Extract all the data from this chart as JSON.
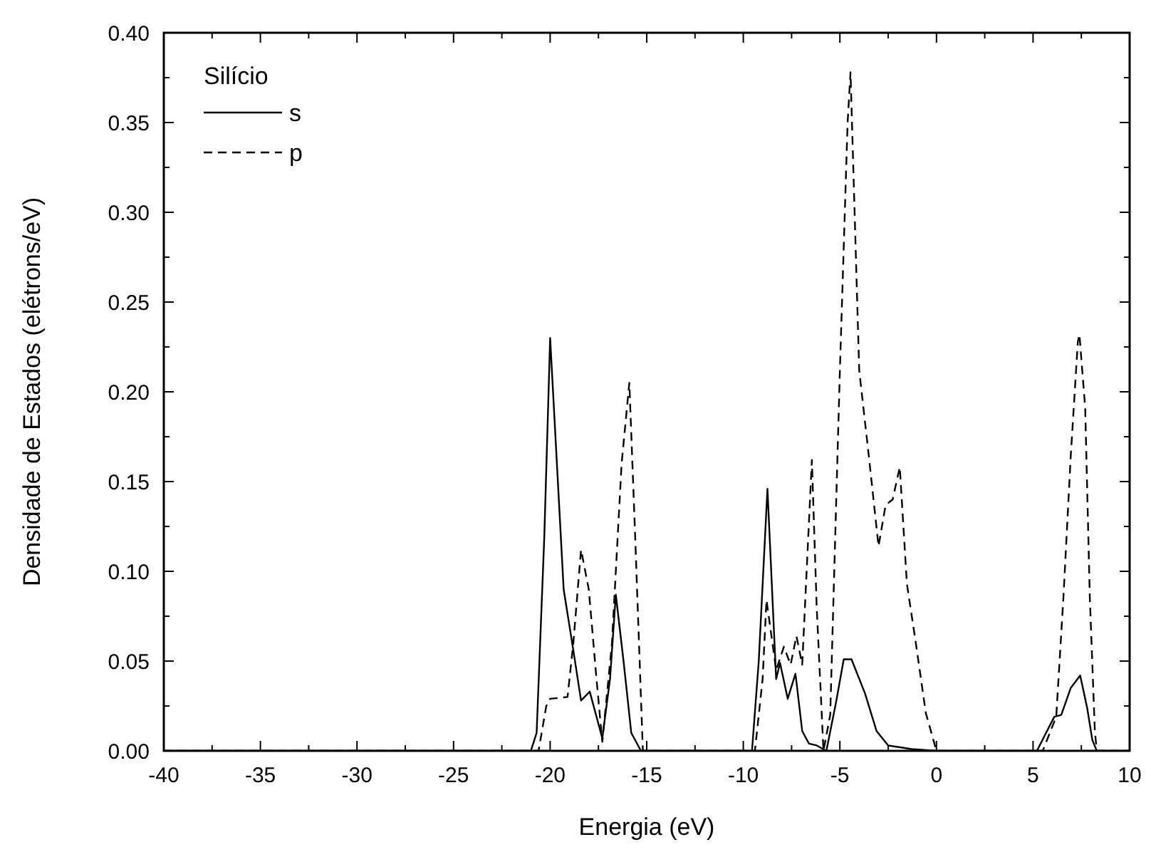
{
  "chart_data": {
    "type": "line",
    "xlabel": "Energia (eV)",
    "ylabel": "Densidade de Estados (elétrons/eV)",
    "legend_title": "Silício",
    "legend": "top left",
    "grid": false,
    "xlim": [
      -40,
      10
    ],
    "ylim": [
      0,
      0.4
    ],
    "xticks": [
      -40,
      {
        "value": -37.5,
        "label": null
      },
      -35,
      {
        "value": -32.5,
        "label": null
      },
      -30,
      {
        "value": -27.5,
        "label": null
      },
      -25,
      {
        "value": -22.5,
        "label": null
      },
      -20,
      {
        "value": -17.5,
        "label": null
      },
      -15,
      {
        "value": -12.5,
        "label": null
      },
      -10,
      {
        "value": -7.5,
        "label": null
      },
      -5,
      {
        "value": -2.5,
        "label": null
      },
      0,
      {
        "value": 2.5,
        "label": null
      },
      5,
      {
        "value": 7.5,
        "label": null
      },
      10
    ],
    "yticks": [
      {
        "value": 0,
        "label": "0.00"
      },
      {
        "value": 0.025,
        "label": null
      },
      {
        "value": 0.05,
        "label": "0.05"
      },
      {
        "value": 0.075,
        "label": null
      },
      {
        "value": 0.1,
        "label": "0.10"
      },
      {
        "value": 0.125,
        "label": null
      },
      {
        "value": 0.15,
        "label": "0.15"
      },
      {
        "value": 0.175,
        "label": null
      },
      {
        "value": 0.2,
        "label": "0.20"
      },
      {
        "value": 0.225,
        "label": null
      },
      {
        "value": 0.25,
        "label": "0.25"
      },
      {
        "value": 0.275,
        "label": null
      },
      {
        "value": 0.3,
        "label": "0.30"
      },
      {
        "value": 0.325,
        "label": null
      },
      {
        "value": 0.35,
        "label": "0.35"
      },
      {
        "value": 0.375,
        "label": null
      },
      {
        "value": 0.4,
        "label": "0.40"
      }
    ],
    "series": [
      {
        "name": "s",
        "color": "#000000",
        "line_style": "solid",
        "x": [
          -40,
          -21,
          -20.7,
          -20.3,
          -20,
          -19.7,
          -19.3,
          -18.8,
          -18.4,
          -17.95,
          -17.3,
          -16.9,
          -16.6,
          -16.2,
          -15.8,
          -15.3,
          -10,
          -9.55,
          -9.2,
          -8.75,
          -8.3,
          -8.1,
          -7.7,
          -7.3,
          -6.95,
          -6.6,
          -6.2,
          -5.7,
          -5.2,
          -4.8,
          -4.4,
          -3.7,
          -3.1,
          -2.5,
          -1.3,
          0,
          5.2,
          6.1,
          6.46,
          6.95,
          7.44,
          7.8,
          8.07,
          8.3,
          10
        ],
        "values": [
          0,
          0,
          0.01,
          0.12,
          0.23,
          0.17,
          0.09,
          0.056,
          0.028,
          0.033,
          0.007,
          0.04,
          0.087,
          0.05,
          0.01,
          0,
          0,
          0,
          0.05,
          0.146,
          0.04,
          0.049,
          0.029,
          0.043,
          0.011,
          0.004,
          0.003,
          0,
          0.027,
          0.051,
          0.051,
          0.032,
          0.011,
          0.003,
          0.001,
          0,
          0,
          0.019,
          0.02,
          0.035,
          0.042,
          0.024,
          0.006,
          0,
          0
        ]
      },
      {
        "name": "p",
        "color": "#000000",
        "line_style": "dashed",
        "x": [
          -40,
          -20.6,
          -20.2,
          -20,
          -19.1,
          -18.8,
          -18.4,
          -18.0,
          -17.6,
          -17.3,
          -16.8,
          -16.3,
          -15.9,
          -15.6,
          -15.2,
          -9.4,
          -9.0,
          -8.8,
          -8.3,
          -7.9,
          -7.55,
          -7.25,
          -6.95,
          -6.45,
          -6.2,
          -5.85,
          -5.5,
          -5.0,
          -4.6,
          -4.45,
          -4.0,
          -3.5,
          -3.0,
          -2.63,
          -2.27,
          -1.9,
          -1.53,
          -1.04,
          -0.55,
          0,
          5.5,
          6.2,
          6.57,
          6.95,
          7.32,
          7.4,
          7.7,
          7.94,
          8.2,
          8.3,
          10
        ],
        "values": [
          0,
          0,
          0.025,
          0.029,
          0.03,
          0.06,
          0.112,
          0.09,
          0.04,
          0.005,
          0.06,
          0.16,
          0.205,
          0.12,
          0,
          0,
          0.04,
          0.084,
          0.045,
          0.058,
          0.048,
          0.064,
          0.048,
          0.162,
          0.08,
          0,
          0.02,
          0.212,
          0.35,
          0.378,
          0.212,
          0.164,
          0.114,
          0.137,
          0.14,
          0.158,
          0.093,
          0.058,
          0.021,
          0,
          0,
          0.019,
          0.085,
          0.164,
          0.228,
          0.232,
          0.191,
          0.085,
          0.011,
          0,
          0
        ]
      }
    ]
  }
}
